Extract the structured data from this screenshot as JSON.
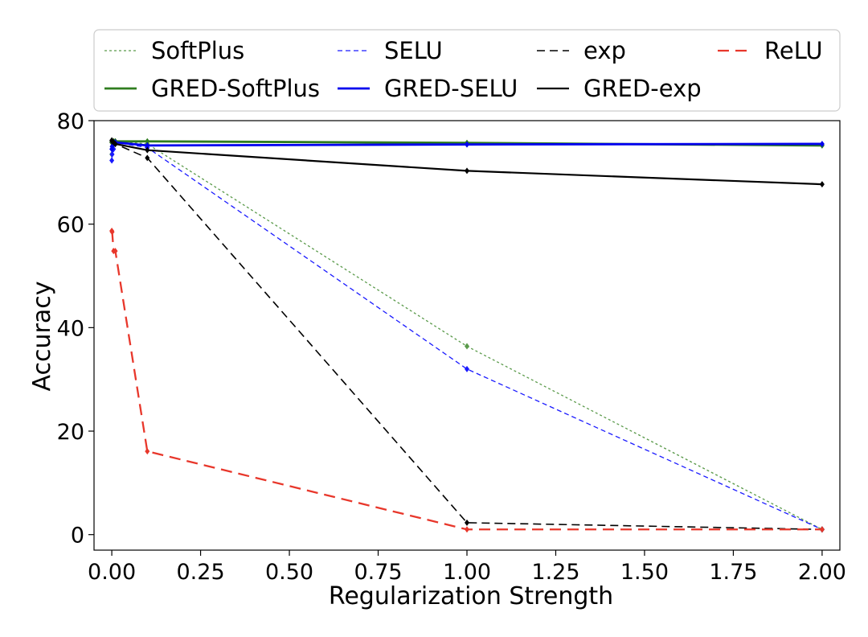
{
  "chart_data": {
    "type": "line",
    "xlabel": "Regularization Strength",
    "ylabel": "Accuracy",
    "xlim": [
      -0.05,
      2.05
    ],
    "ylim": [
      -3,
      80
    ],
    "xticks": [
      0.0,
      0.25,
      0.5,
      0.75,
      1.0,
      1.25,
      1.5,
      1.75,
      2.0
    ],
    "xtick_labels": [
      "0.00",
      "0.25",
      "0.50",
      "0.75",
      "1.00",
      "1.25",
      "1.50",
      "1.75",
      "2.00"
    ],
    "yticks": [
      0,
      20,
      40,
      60,
      80
    ],
    "ytick_labels": [
      "0",
      "20",
      "40",
      "60",
      "80"
    ],
    "grid": false,
    "legend_position": "top",
    "series": [
      {
        "name": "SoftPlus",
        "color": "#5a9a4a",
        "dash": "dotted",
        "width": 1.3,
        "x": [
          0,
          0.001,
          0.005,
          0.01,
          0.1,
          1.0,
          2.0
        ],
        "y": [
          73.5,
          75.0,
          75.8,
          76.0,
          75.5,
          36.4,
          1.0
        ]
      },
      {
        "name": "SELU",
        "color": "#1a1aff",
        "dash": "dashed-fine",
        "width": 1.3,
        "x": [
          0,
          0.001,
          0.005,
          0.01,
          0.1,
          1.0,
          2.0
        ],
        "y": [
          72.3,
          73.5,
          74.5,
          75.8,
          74.8,
          32.0,
          1.0
        ]
      },
      {
        "name": "exp",
        "color": "#000000",
        "dash": "dashed",
        "width": 1.6,
        "x": [
          0,
          0.001,
          0.005,
          0.01,
          0.1,
          1.0,
          2.0
        ],
        "y": [
          75.8,
          76.0,
          76.0,
          75.5,
          72.8,
          2.3,
          1.0
        ]
      },
      {
        "name": "ReLU",
        "color": "#e8372b",
        "dash": "dashed-wide",
        "width": 2.3,
        "x": [
          0,
          0.001,
          0.005,
          0.01,
          0.1,
          1.0,
          2.0
        ],
        "y": [
          58.7,
          58.5,
          54.8,
          54.8,
          16.1,
          1.0,
          1.0
        ]
      },
      {
        "name": "GRED-SoftPlus",
        "color": "#2f7d1f",
        "dash": "solid",
        "width": 2.8,
        "x": [
          0,
          0.001,
          0.005,
          0.01,
          0.1,
          1.0,
          2.0
        ],
        "y": [
          75.8,
          76.0,
          76.0,
          76.0,
          76.0,
          75.7,
          75.2
        ]
      },
      {
        "name": "GRED-SELU",
        "color": "#0000ee",
        "dash": "solid",
        "width": 2.8,
        "x": [
          0,
          0.001,
          0.005,
          0.01,
          0.1,
          1.0,
          2.0
        ],
        "y": [
          74.5,
          75.0,
          75.5,
          75.8,
          75.2,
          75.4,
          75.5
        ]
      },
      {
        "name": "GRED-exp",
        "color": "#000000",
        "dash": "solid",
        "width": 2.2,
        "x": [
          0,
          0.001,
          0.005,
          0.01,
          0.1,
          1.0,
          2.0
        ],
        "y": [
          76.2,
          76.0,
          75.8,
          75.5,
          74.3,
          70.3,
          67.7
        ]
      }
    ],
    "legend_order": [
      "SoftPlus",
      "SELU",
      "exp",
      "ReLU",
      "GRED-SoftPlus",
      "GRED-SELU",
      "GRED-exp"
    ]
  }
}
